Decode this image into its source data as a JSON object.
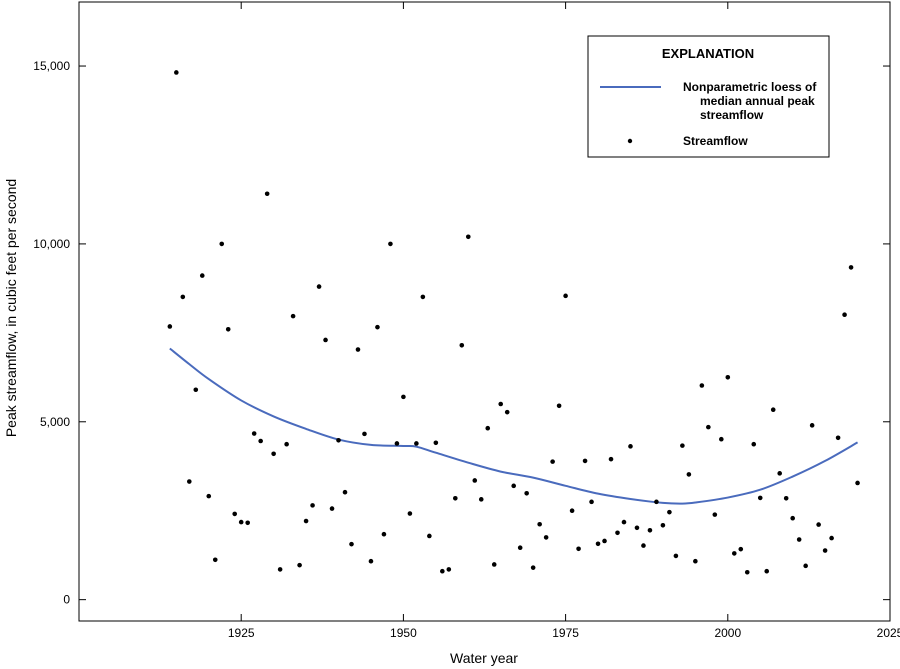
{
  "chart_data": {
    "type": "scatter",
    "xlabel": "Water year",
    "ylabel": "Peak streamflow, in cubic feet per second",
    "xlim": [
      1900,
      2025
    ],
    "ylim": [
      -600,
      16800
    ],
    "x_ticks": [
      1925,
      1950,
      1975,
      2000,
      2025
    ],
    "x_tick_labels": [
      "1925",
      "1950",
      "1975",
      "2000",
      "2025"
    ],
    "y_ticks": [
      0,
      5000,
      10000,
      15000
    ],
    "y_tick_labels": [
      "0",
      "5,000",
      "10,000",
      "15,000"
    ],
    "grid": false,
    "legend": {
      "title": "EXPLANATION",
      "placement": "top-right",
      "line_label_lines": [
        "Nonparametric loess of",
        "median annual peak",
        "streamflow"
      ],
      "points_label": "Streamflow"
    },
    "series": [
      {
        "type": "scatter",
        "color": "#000000",
        "points": [
          [
            1914,
            7680
          ],
          [
            1915,
            14820
          ],
          [
            1916,
            8510
          ],
          [
            1917,
            3320
          ],
          [
            1918,
            5900
          ],
          [
            1919,
            9110
          ],
          [
            1920,
            2910
          ],
          [
            1921,
            1120
          ],
          [
            1922,
            10000
          ],
          [
            1923,
            7600
          ],
          [
            1924,
            2410
          ],
          [
            1925,
            2180
          ],
          [
            1926,
            2160
          ],
          [
            1927,
            4670
          ],
          [
            1928,
            4460
          ],
          [
            1929,
            11410
          ],
          [
            1930,
            4100
          ],
          [
            1931,
            850
          ],
          [
            1932,
            4370
          ],
          [
            1933,
            7970
          ],
          [
            1934,
            970
          ],
          [
            1935,
            2210
          ],
          [
            1936,
            2650
          ],
          [
            1937,
            8800
          ],
          [
            1938,
            7300
          ],
          [
            1939,
            2560
          ],
          [
            1940,
            4480
          ],
          [
            1941,
            3020
          ],
          [
            1942,
            1560
          ],
          [
            1943,
            7030
          ],
          [
            1944,
            4660
          ],
          [
            1945,
            1080
          ],
          [
            1946,
            7660
          ],
          [
            1947,
            1840
          ],
          [
            1948,
            10000
          ],
          [
            1949,
            4390
          ],
          [
            1950,
            5700
          ],
          [
            1951,
            2420
          ],
          [
            1952,
            4390
          ],
          [
            1953,
            8510
          ],
          [
            1954,
            1790
          ],
          [
            1955,
            4410
          ],
          [
            1956,
            800
          ],
          [
            1957,
            850
          ],
          [
            1958,
            2850
          ],
          [
            1959,
            7150
          ],
          [
            1960,
            10200
          ],
          [
            1961,
            3350
          ],
          [
            1962,
            2820
          ],
          [
            1963,
            4820
          ],
          [
            1964,
            990
          ],
          [
            1965,
            5500
          ],
          [
            1966,
            5270
          ],
          [
            1967,
            3200
          ],
          [
            1968,
            1460
          ],
          [
            1969,
            2990
          ],
          [
            1970,
            900
          ],
          [
            1971,
            2120
          ],
          [
            1972,
            1750
          ],
          [
            1973,
            3880
          ],
          [
            1974,
            5450
          ],
          [
            1975,
            8540
          ],
          [
            1976,
            2500
          ],
          [
            1977,
            1430
          ],
          [
            1978,
            3900
          ],
          [
            1979,
            2750
          ],
          [
            1980,
            1570
          ],
          [
            1981,
            1650
          ],
          [
            1982,
            3950
          ],
          [
            1983,
            1880
          ],
          [
            1984,
            2180
          ],
          [
            1985,
            4310
          ],
          [
            1986,
            2020
          ],
          [
            1987,
            1520
          ],
          [
            1988,
            1950
          ],
          [
            1989,
            2750
          ],
          [
            1990,
            2090
          ],
          [
            1991,
            2460
          ],
          [
            1992,
            1230
          ],
          [
            1993,
            4330
          ],
          [
            1994,
            3520
          ],
          [
            1995,
            1080
          ],
          [
            1996,
            6020
          ],
          [
            1997,
            4850
          ],
          [
            1998,
            2390
          ],
          [
            1999,
            4510
          ],
          [
            2000,
            6250
          ],
          [
            2001,
            1300
          ],
          [
            2002,
            1420
          ],
          [
            2003,
            770
          ],
          [
            2004,
            4370
          ],
          [
            2005,
            2860
          ],
          [
            2006,
            800
          ],
          [
            2007,
            5340
          ],
          [
            2008,
            3550
          ],
          [
            2009,
            2850
          ],
          [
            2010,
            2290
          ],
          [
            2011,
            1690
          ],
          [
            2012,
            950
          ],
          [
            2013,
            4900
          ],
          [
            2014,
            2110
          ],
          [
            2015,
            1380
          ],
          [
            2016,
            1730
          ],
          [
            2017,
            4550
          ],
          [
            2018,
            8010
          ],
          [
            2019,
            9340
          ],
          [
            2020,
            3280
          ]
        ]
      },
      {
        "type": "line",
        "color": "#4a6bbd",
        "points": [
          [
            1914,
            7060
          ],
          [
            1917,
            6620
          ],
          [
            1920,
            6200
          ],
          [
            1925,
            5600
          ],
          [
            1930,
            5150
          ],
          [
            1935,
            4800
          ],
          [
            1940,
            4500
          ],
          [
            1945,
            4350
          ],
          [
            1950,
            4320
          ],
          [
            1952,
            4300
          ],
          [
            1955,
            4130
          ],
          [
            1960,
            3850
          ],
          [
            1965,
            3600
          ],
          [
            1970,
            3430
          ],
          [
            1975,
            3200
          ],
          [
            1980,
            2980
          ],
          [
            1985,
            2830
          ],
          [
            1990,
            2720
          ],
          [
            1993,
            2700
          ],
          [
            1995,
            2730
          ],
          [
            2000,
            2870
          ],
          [
            2005,
            3090
          ],
          [
            2010,
            3460
          ],
          [
            2015,
            3900
          ],
          [
            2020,
            4420
          ]
        ]
      }
    ]
  }
}
